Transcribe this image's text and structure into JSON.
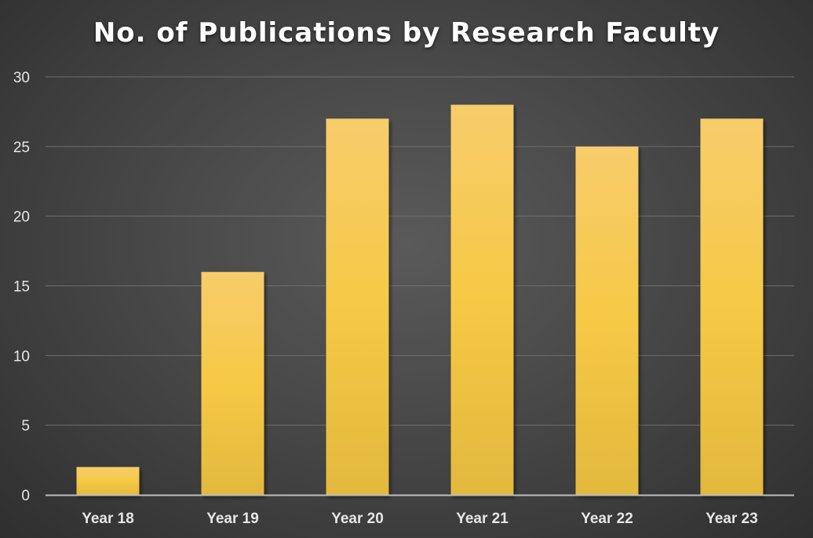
{
  "chart_data": {
    "type": "bar",
    "title": "No. of Publications by Research Faculty",
    "categories": [
      "Year 18",
      "Year 19",
      "Year 20",
      "Year 21",
      "Year 22",
      "Year 23"
    ],
    "values": [
      2,
      16,
      27,
      28,
      25,
      27
    ],
    "xlabel": "",
    "ylabel": "",
    "ylim": [
      0,
      30
    ],
    "yticks": [
      0,
      5,
      10,
      15,
      20,
      25,
      30
    ],
    "grid": true,
    "legend": "none",
    "colors": {
      "bar_top": "#f7cc6b",
      "bar_mid": "#f6c945",
      "bar_bottom": "#e2b83e",
      "gridline": "#6e6e6e",
      "axis": "#bdbdbd",
      "text": "#e6e6e6"
    }
  }
}
